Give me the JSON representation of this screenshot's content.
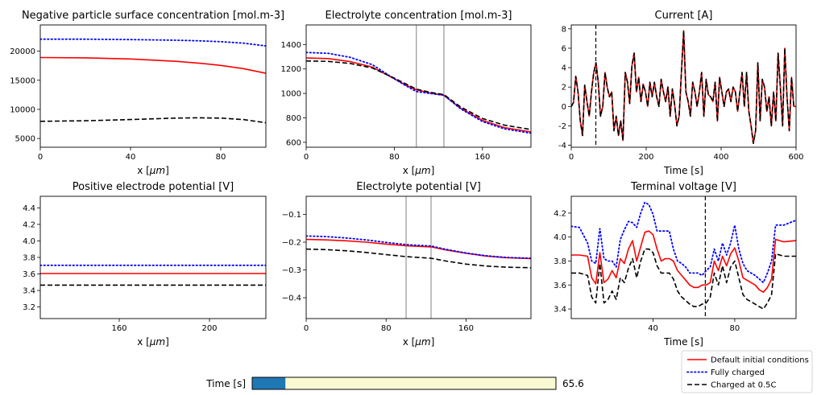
{
  "colors": {
    "default": "#ff0000",
    "full": "#0000ff",
    "half": "#000000",
    "slider_fill": "#1f77b4",
    "slider_track": "#fafad2",
    "marker": "#808080"
  },
  "legend": {
    "placement": "lower-right",
    "entries": [
      {
        "label": "Default initial conditions",
        "color": "#ff0000",
        "style": "solid"
      },
      {
        "label": "Fully charged",
        "color": "#0000ff",
        "style": "dotted"
      },
      {
        "label": "Charged at 0.5C",
        "color": "#000000",
        "style": "dashed"
      }
    ]
  },
  "slider": {
    "label": "Time [s]",
    "value_text": "65.6",
    "min": 0,
    "max": 600,
    "value": 65.6
  },
  "chart_data": [
    {
      "type": "line",
      "title": "Negative particle surface concentration [mol.m-3]",
      "xlabel": "x [$\\mu m$]",
      "ylabel": "",
      "xlim": [
        0,
        100
      ],
      "ylim": [
        3500,
        24500
      ],
      "xticks": [
        0,
        40,
        80
      ],
      "yticks": [
        5000,
        10000,
        15000,
        20000
      ],
      "x": [
        0,
        20,
        40,
        60,
        70,
        80,
        90,
        100
      ],
      "series": [
        {
          "name": "Default initial conditions",
          "values": [
            18900,
            18850,
            18650,
            18250,
            17950,
            17550,
            17000,
            16200
          ]
        },
        {
          "name": "Fully charged",
          "values": [
            22050,
            22050,
            21990,
            21880,
            21780,
            21620,
            21380,
            20900
          ]
        },
        {
          "name": "Charged at 0.5C",
          "values": [
            7950,
            8050,
            8250,
            8500,
            8550,
            8500,
            8250,
            7700
          ]
        }
      ]
    },
    {
      "type": "line",
      "title": "Electrolyte concentration [mol.m-3]",
      "xlabel": "x [$\\mu m$]",
      "ylabel": "",
      "xlim": [
        0,
        204
      ],
      "ylim": [
        560,
        1560
      ],
      "xticks": [
        0,
        80,
        160
      ],
      "yticks": [
        600,
        800,
        1000,
        1200,
        1400
      ],
      "vlines": [
        100,
        125
      ],
      "x": [
        0,
        20,
        40,
        60,
        80,
        90,
        100,
        112,
        125,
        140,
        160,
        180,
        204
      ],
      "series": [
        {
          "name": "Default initial conditions",
          "values": [
            1290,
            1285,
            1260,
            1215,
            1120,
            1070,
            1030,
            1005,
            985,
            880,
            780,
            720,
            685
          ]
        },
        {
          "name": "Fully charged",
          "values": [
            1335,
            1328,
            1295,
            1235,
            1120,
            1065,
            1015,
            1000,
            985,
            875,
            770,
            710,
            675
          ]
        },
        {
          "name": "Charged at 0.5C",
          "values": [
            1265,
            1262,
            1245,
            1208,
            1125,
            1080,
            1035,
            1010,
            990,
            890,
            795,
            740,
            705
          ]
        }
      ]
    },
    {
      "type": "line",
      "title": "Current [A]",
      "xlabel": "Time [s]",
      "ylabel": "",
      "xlim": [
        0,
        600
      ],
      "ylim": [
        -4.2,
        8.4
      ],
      "xticks": [
        0,
        200,
        400,
        600
      ],
      "yticks": [
        -4,
        -2,
        0,
        2,
        4,
        6,
        8
      ],
      "vlines": [
        65.6
      ],
      "x": [
        0,
        6,
        12,
        18,
        24,
        30,
        36,
        42,
        48,
        54,
        60,
        66,
        72,
        78,
        84,
        90,
        96,
        102,
        108,
        114,
        120,
        126,
        132,
        138,
        144,
        150,
        156,
        162,
        168,
        174,
        180,
        186,
        192,
        198,
        204,
        210,
        216,
        222,
        228,
        234,
        240,
        246,
        252,
        258,
        264,
        270,
        276,
        282,
        288,
        294,
        300,
        306,
        312,
        318,
        324,
        330,
        336,
        342,
        348,
        354,
        360,
        366,
        372,
        378,
        384,
        390,
        396,
        402,
        408,
        414,
        420,
        426,
        432,
        438,
        444,
        450,
        456,
        462,
        468,
        474,
        480,
        486,
        492,
        498,
        504,
        510,
        516,
        522,
        528,
        534,
        540,
        546,
        552,
        558,
        564,
        570,
        576,
        582,
        588,
        594,
        600
      ],
      "series": [
        {
          "name": "Default initial conditions",
          "values": [
            0,
            0.4,
            3.1,
            1.5,
            -1.5,
            -3,
            2.2,
            0.5,
            -1,
            1.5,
            3.5,
            4.5,
            2.5,
            -1,
            0,
            3.5,
            2,
            1,
            1.5,
            -2.5,
            -1,
            -3,
            -1.5,
            -3.5,
            3.5,
            2.5,
            0.3,
            4.2,
            5.5,
            1.5,
            3,
            0.5,
            2.3,
            1.5,
            0,
            2.5,
            1,
            2.5,
            1,
            0,
            2.8,
            1.5,
            0.5,
            2,
            -1,
            1.8,
            0.2,
            -2,
            -1,
            3.5,
            7.8,
            1.5,
            0.5,
            -1,
            2.5,
            1.5,
            0,
            1.5,
            3.5,
            -1,
            2.8,
            1.2,
            1,
            0.5,
            2.5,
            -1.5,
            3,
            1.5,
            0,
            1.5,
            1.8,
            0.5,
            2,
            1.5,
            -0.5,
            1.5,
            3.5,
            0,
            3.5,
            -0.5,
            -2,
            -3.8,
            -2.5,
            4.5,
            -1.5,
            2.8,
            2,
            -0.5,
            1,
            -2,
            1.5,
            -1.5,
            5.5,
            2,
            -2,
            6,
            1,
            -2.5,
            3,
            0,
            0
          ]
        },
        {
          "name": "Charged at 0.5C",
          "values": [
            0,
            0.4,
            3.1,
            1.5,
            -1.5,
            -3,
            2.2,
            0.5,
            -1,
            1.5,
            3.5,
            4.5,
            2.5,
            -1,
            0,
            3.5,
            2,
            1,
            1.5,
            -2.5,
            -1,
            -3,
            -1.5,
            -3.5,
            3.5,
            2.5,
            0.3,
            4.2,
            5.5,
            1.5,
            3,
            0.5,
            2.3,
            1.5,
            0,
            2.5,
            1,
            2.5,
            1,
            0,
            2.8,
            1.5,
            0.5,
            2,
            -1,
            1.8,
            0.2,
            -2,
            -1,
            3.5,
            7.8,
            1.5,
            0.5,
            -1,
            2.5,
            1.5,
            0,
            1.5,
            3.5,
            -1,
            2.8,
            1.2,
            1,
            0.5,
            2.5,
            -1.5,
            3,
            1.5,
            0,
            1.5,
            1.8,
            0.5,
            2,
            1.5,
            -0.5,
            1.5,
            3.5,
            0,
            3.5,
            -0.5,
            -2,
            -3.8,
            -2.5,
            4.5,
            -1.5,
            2.8,
            2,
            -0.5,
            1,
            -2,
            1.5,
            -1.5,
            5.5,
            2,
            -2,
            6,
            1,
            -2.5,
            3,
            0,
            0
          ]
        }
      ]
    },
    {
      "type": "line",
      "title": "Positive electrode potential [V]",
      "xlabel": "x [$\\mu m$]",
      "ylabel": "",
      "xlim": [
        125,
        225
      ],
      "ylim": [
        3.06,
        4.54
      ],
      "xticks": [
        160,
        200
      ],
      "yticks": [
        3.2,
        3.4,
        3.6,
        3.8,
        4.0,
        4.2,
        4.4
      ],
      "x": [
        125,
        225
      ],
      "series": [
        {
          "name": "Default initial conditions",
          "values": [
            3.605,
            3.605
          ]
        },
        {
          "name": "Fully charged",
          "values": [
            3.705,
            3.705
          ]
        },
        {
          "name": "Charged at 0.5C",
          "values": [
            3.465,
            3.465
          ]
        }
      ]
    },
    {
      "type": "line",
      "title": "Electrolyte potential [V]",
      "xlabel": "x [$\\mu m$]",
      "ylabel": "",
      "xlim": [
        0,
        225
      ],
      "ylim": [
        -0.475,
        -0.035
      ],
      "xticks": [
        0,
        80,
        160
      ],
      "yticks": [
        -0.4,
        -0.3,
        -0.2,
        -0.1
      ],
      "vlines": [
        100,
        125
      ],
      "x": [
        0,
        20,
        40,
        60,
        80,
        100,
        125,
        140,
        160,
        180,
        200,
        225
      ],
      "series": [
        {
          "name": "Default initial conditions",
          "values": [
            -0.19,
            -0.192,
            -0.195,
            -0.2,
            -0.207,
            -0.213,
            -0.217,
            -0.228,
            -0.24,
            -0.25,
            -0.256,
            -0.259
          ]
        },
        {
          "name": "Fully charged",
          "values": [
            -0.178,
            -0.18,
            -0.185,
            -0.192,
            -0.201,
            -0.209,
            -0.214,
            -0.226,
            -0.239,
            -0.249,
            -0.255,
            -0.258
          ]
        },
        {
          "name": "Charged at 0.5C",
          "values": [
            -0.225,
            -0.227,
            -0.231,
            -0.237,
            -0.245,
            -0.252,
            -0.258,
            -0.268,
            -0.279,
            -0.286,
            -0.29,
            -0.292
          ]
        }
      ]
    },
    {
      "type": "line",
      "title": "Terminal voltage [V]",
      "xlabel": "Time [s]",
      "ylabel": "",
      "xlim": [
        0,
        110
      ],
      "ylim": [
        3.32,
        4.34
      ],
      "xticks": [
        40,
        80
      ],
      "yticks": [
        3.4,
        3.6,
        3.8,
        4.0,
        4.2
      ],
      "vlines": [
        65.6
      ],
      "x": [
        0,
        4,
        8,
        10,
        12,
        14,
        16,
        18,
        20,
        22,
        24,
        26,
        28,
        30,
        32,
        34,
        36,
        38,
        40,
        42,
        44,
        46,
        48,
        50,
        52,
        54,
        56,
        58,
        60,
        62,
        64,
        66,
        68,
        70,
        72,
        74,
        76,
        78,
        80,
        82,
        84,
        86,
        88,
        90,
        92,
        94,
        96,
        98,
        100,
        104,
        110
      ],
      "series": [
        {
          "name": "Default initial conditions",
          "values": [
            3.85,
            3.85,
            3.84,
            3.66,
            3.61,
            3.87,
            3.62,
            3.65,
            3.72,
            3.66,
            3.82,
            3.78,
            3.9,
            3.97,
            3.8,
            3.92,
            4.04,
            4.05,
            4.02,
            3.9,
            3.8,
            3.82,
            3.82,
            3.8,
            3.72,
            3.68,
            3.64,
            3.6,
            3.58,
            3.58,
            3.6,
            3.6,
            3.62,
            3.8,
            3.72,
            3.84,
            3.76,
            3.86,
            3.91,
            3.8,
            3.66,
            3.64,
            3.62,
            3.6,
            3.56,
            3.54,
            3.58,
            3.65,
            3.98,
            3.96,
            3.97
          ]
        },
        {
          "name": "Fully charged",
          "values": [
            4.09,
            4.08,
            3.95,
            3.8,
            3.78,
            4.07,
            3.82,
            3.8,
            3.8,
            3.75,
            3.98,
            4.06,
            4.13,
            4.12,
            4.08,
            4.2,
            4.29,
            4.27,
            4.19,
            4.05,
            4.05,
            4.05,
            4.05,
            3.9,
            3.8,
            3.78,
            3.75,
            3.7,
            3.7,
            3.7,
            3.68,
            3.72,
            3.75,
            3.9,
            3.8,
            3.95,
            3.85,
            3.95,
            4.1,
            3.9,
            3.78,
            3.72,
            3.7,
            3.68,
            3.65,
            3.62,
            3.7,
            3.8,
            4.1,
            4.1,
            4.14
          ]
        },
        {
          "name": "Charged at 0.5C",
          "values": [
            3.7,
            3.7,
            3.68,
            3.5,
            3.45,
            3.78,
            3.45,
            3.48,
            3.55,
            3.48,
            3.66,
            3.62,
            3.74,
            3.82,
            3.66,
            3.8,
            3.9,
            3.9,
            3.87,
            3.76,
            3.7,
            3.7,
            3.7,
            3.65,
            3.55,
            3.5,
            3.47,
            3.44,
            3.42,
            3.42,
            3.44,
            3.45,
            3.5,
            3.7,
            3.6,
            3.76,
            3.62,
            3.75,
            3.8,
            3.66,
            3.52,
            3.48,
            3.46,
            3.44,
            3.42,
            3.4,
            3.45,
            3.52,
            3.86,
            3.84,
            3.84
          ]
        }
      ]
    }
  ]
}
